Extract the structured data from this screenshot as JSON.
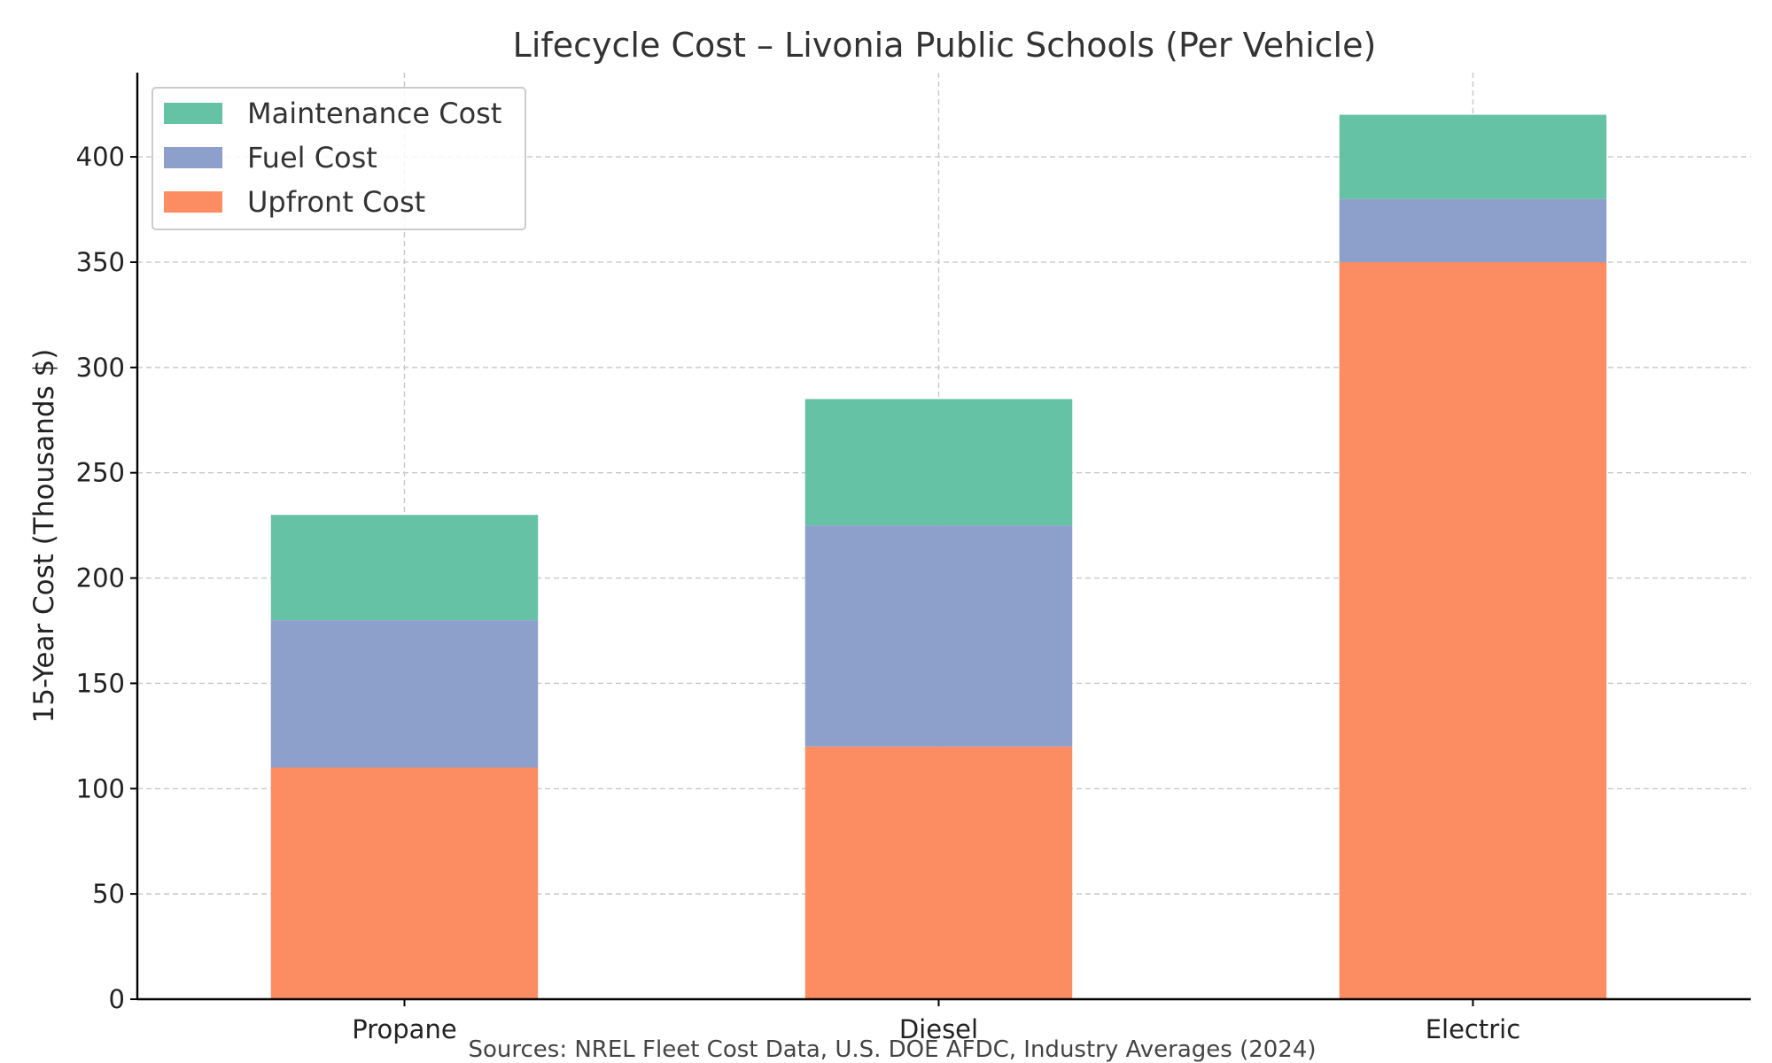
{
  "chart_data": {
    "type": "bar",
    "stacked": true,
    "title": "Lifecycle Cost – Livonia Public Schools (Per Vehicle)",
    "xlabel": "",
    "ylabel": "15-Year Cost (Thousands $)",
    "categories": [
      "Propane",
      "Diesel",
      "Electric"
    ],
    "series": [
      {
        "name": "Upfront Cost",
        "color": "#fc8d62",
        "values": [
          110,
          120,
          350
        ]
      },
      {
        "name": "Fuel Cost",
        "color": "#8da0cb",
        "values": [
          70,
          105,
          30
        ]
      },
      {
        "name": "Maintenance Cost",
        "color": "#66c2a5",
        "values": [
          50,
          60,
          40
        ]
      }
    ],
    "legend_order": [
      "Maintenance Cost",
      "Fuel Cost",
      "Upfront Cost"
    ],
    "legend_position": "top-left",
    "ylim": [
      0,
      440
    ],
    "yticks": [
      0,
      50,
      100,
      150,
      200,
      250,
      300,
      350,
      400
    ],
    "grid": true,
    "source_note": "Sources: NREL Fleet Cost Data, U.S. DOE AFDC, Industry Averages (2024)"
  }
}
